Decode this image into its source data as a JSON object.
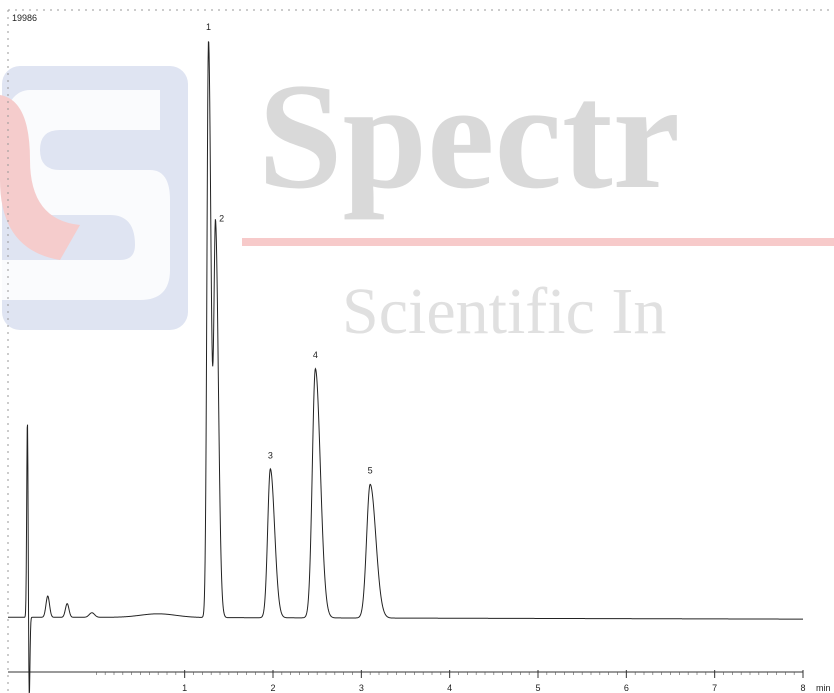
{
  "watermark": {
    "title": "Spectr",
    "subtitle": "Scientific In",
    "colors": {
      "text": "#d9d9d9",
      "line": "#f7caca",
      "logo_blue": "#dfe4f2",
      "logo_red": "#f5cccc"
    }
  },
  "chart_data": {
    "type": "line",
    "title": "",
    "xlabel": "",
    "ylabel": "",
    "x_unit": "min",
    "y_max_label": "19986",
    "xlim": [
      -1.0,
      8.0
    ],
    "ylim": [
      -1800,
      19986
    ],
    "x_ticks": [
      1,
      2,
      3,
      4,
      5,
      6,
      7,
      8
    ],
    "grid": "top dashed border only",
    "line_color": "#222222",
    "peaks": [
      {
        "label": "1",
        "rt": 1.27,
        "height": 19000
      },
      {
        "label": "2",
        "rt": 1.35,
        "height": 12700
      },
      {
        "label": "3",
        "rt": 1.97,
        "height": 4900
      },
      {
        "label": "4",
        "rt": 2.48,
        "height": 8200
      },
      {
        "label": "5",
        "rt": 3.1,
        "height": 4400
      }
    ]
  }
}
